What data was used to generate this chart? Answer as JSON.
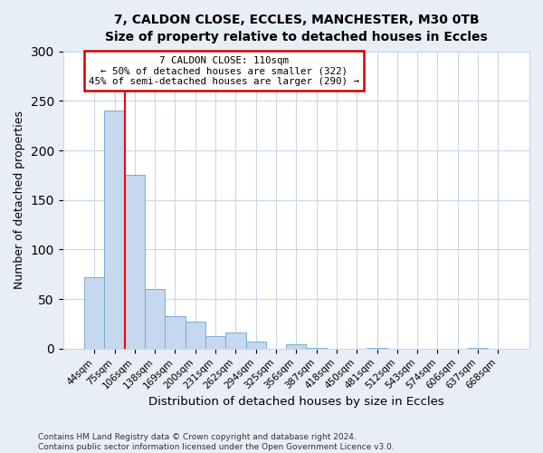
{
  "title": "7, CALDON CLOSE, ECCLES, MANCHESTER, M30 0TB",
  "subtitle": "Size of property relative to detached houses in Eccles",
  "xlabel": "Distribution of detached houses by size in Eccles",
  "ylabel": "Number of detached properties",
  "bar_labels": [
    "44sqm",
    "75sqm",
    "106sqm",
    "138sqm",
    "169sqm",
    "200sqm",
    "231sqm",
    "262sqm",
    "294sqm",
    "325sqm",
    "356sqm",
    "387sqm",
    "418sqm",
    "450sqm",
    "481sqm",
    "512sqm",
    "543sqm",
    "574sqm",
    "606sqm",
    "637sqm",
    "668sqm"
  ],
  "bar_values": [
    72,
    240,
    175,
    60,
    33,
    27,
    13,
    16,
    7,
    0,
    4,
    1,
    0,
    0,
    1,
    0,
    0,
    0,
    0,
    1,
    0
  ],
  "bar_color": "#c5d8ee",
  "bar_edge_color": "#7aadd4",
  "ylim": [
    0,
    300
  ],
  "yticks": [
    0,
    50,
    100,
    150,
    200,
    250,
    300
  ],
  "red_line_index": 2,
  "annotation_title": "7 CALDON CLOSE: 110sqm",
  "annotation_line1": "← 50% of detached houses are smaller (322)",
  "annotation_line2": "45% of semi-detached houses are larger (290) →",
  "annotation_box_color": "#ffffff",
  "annotation_box_edge_color": "#cc0000",
  "footer1": "Contains HM Land Registry data © Crown copyright and database right 2024.",
  "footer2": "Contains public sector information licensed under the Open Government Licence v3.0.",
  "bg_color": "#e8eef5",
  "plot_bg_color": "#ffffff",
  "grid_color": "#c8d8e8"
}
